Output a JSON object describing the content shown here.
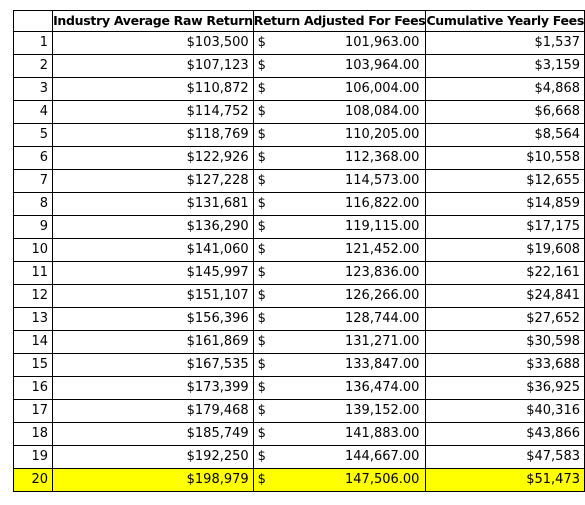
{
  "headers": {
    "index": "",
    "raw": "Industry Average Raw Return",
    "adjusted": "Return Adjusted For Fees",
    "cumulative": "Cumulative Yearly Fees"
  },
  "currency_symbol": "$",
  "highlight_color": "#ffff00",
  "highlighted_year": "20",
  "rows": [
    {
      "year": "1",
      "raw": "$103,500",
      "adjusted": "101,963.00",
      "fees": "$1,537"
    },
    {
      "year": "2",
      "raw": "$107,123",
      "adjusted": "103,964.00",
      "fees": "$3,159"
    },
    {
      "year": "3",
      "raw": "$110,872",
      "adjusted": "106,004.00",
      "fees": "$4,868"
    },
    {
      "year": "4",
      "raw": "$114,752",
      "adjusted": "108,084.00",
      "fees": "$6,668"
    },
    {
      "year": "5",
      "raw": "$118,769",
      "adjusted": "110,205.00",
      "fees": "$8,564"
    },
    {
      "year": "6",
      "raw": "$122,926",
      "adjusted": "112,368.00",
      "fees": "$10,558"
    },
    {
      "year": "7",
      "raw": "$127,228",
      "adjusted": "114,573.00",
      "fees": "$12,655"
    },
    {
      "year": "8",
      "raw": "$131,681",
      "adjusted": "116,822.00",
      "fees": "$14,859"
    },
    {
      "year": "9",
      "raw": "$136,290",
      "adjusted": "119,115.00",
      "fees": "$17,175"
    },
    {
      "year": "10",
      "raw": "$141,060",
      "adjusted": "121,452.00",
      "fees": "$19,608"
    },
    {
      "year": "11",
      "raw": "$145,997",
      "adjusted": "123,836.00",
      "fees": "$22,161"
    },
    {
      "year": "12",
      "raw": "$151,107",
      "adjusted": "126,266.00",
      "fees": "$24,841"
    },
    {
      "year": "13",
      "raw": "$156,396",
      "adjusted": "128,744.00",
      "fees": "$27,652"
    },
    {
      "year": "14",
      "raw": "$161,869",
      "adjusted": "131,271.00",
      "fees": "$30,598"
    },
    {
      "year": "15",
      "raw": "$167,535",
      "adjusted": "133,847.00",
      "fees": "$33,688"
    },
    {
      "year": "16",
      "raw": "$173,399",
      "adjusted": "136,474.00",
      "fees": "$36,925"
    },
    {
      "year": "17",
      "raw": "$179,468",
      "adjusted": "139,152.00",
      "fees": "$40,316"
    },
    {
      "year": "18",
      "raw": "$185,749",
      "adjusted": "141,883.00",
      "fees": "$43,866"
    },
    {
      "year": "19",
      "raw": "$192,250",
      "adjusted": "144,667.00",
      "fees": "$47,583"
    },
    {
      "year": "20",
      "raw": "$198,979",
      "adjusted": "147,506.00",
      "fees": "$51,473"
    }
  ]
}
